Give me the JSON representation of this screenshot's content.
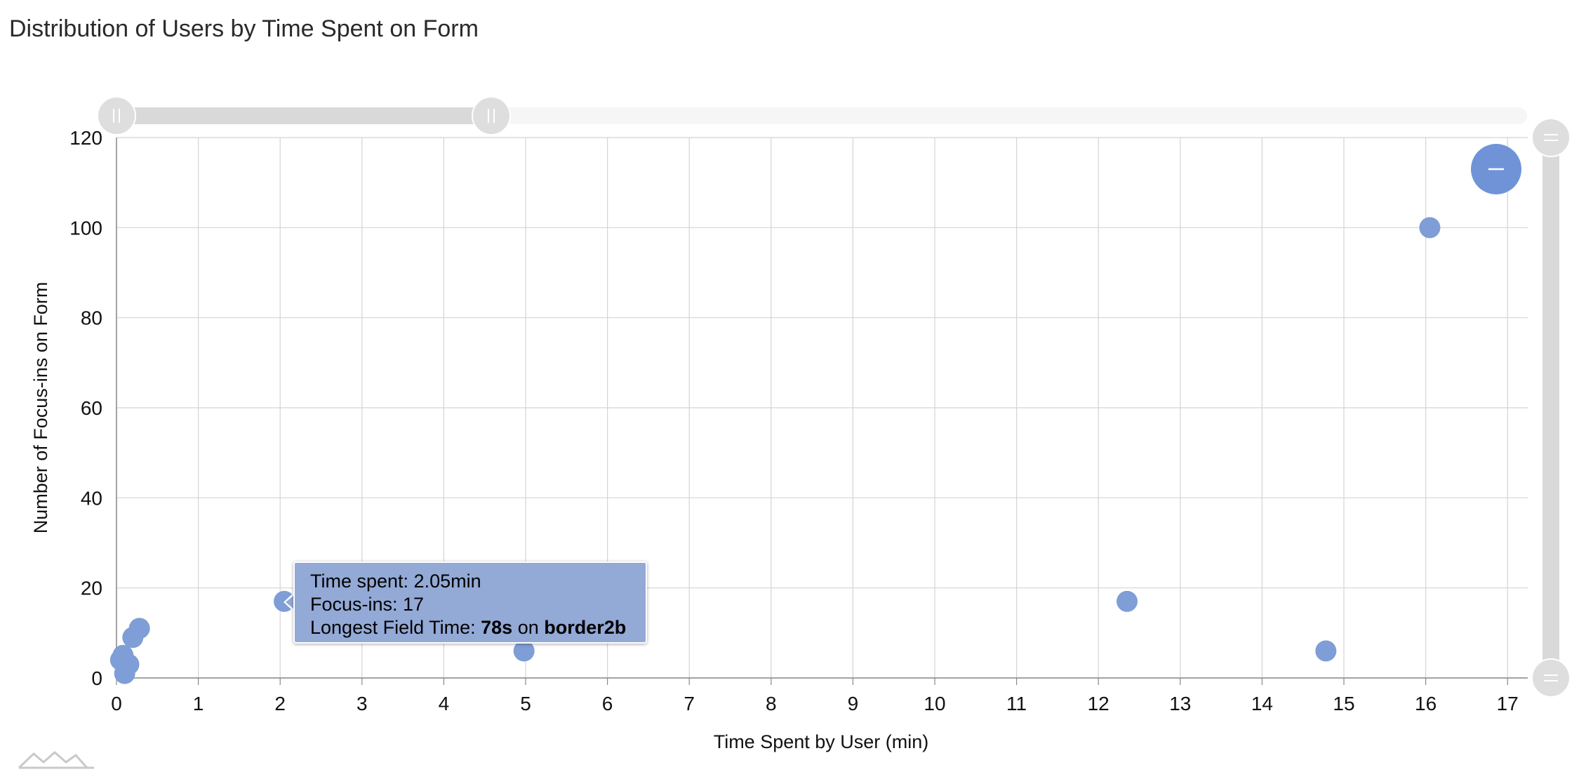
{
  "title": "Distribution of Users by Time Spent on Form",
  "chart_data": {
    "type": "scatter",
    "title": "Distribution of Users by Time Spent on Form",
    "xlabel": "Time Spent by User (min)",
    "ylabel": "Number of Focus-ins on Form",
    "xlim": [
      0,
      17.5
    ],
    "ylim": [
      0,
      120
    ],
    "x_ticks": [
      "0",
      "1",
      "2",
      "3",
      "4",
      "5",
      "6",
      "7",
      "8",
      "9",
      "10",
      "11",
      "12",
      "13",
      "14",
      "15",
      "16",
      "17"
    ],
    "y_ticks": [
      "0",
      "20",
      "40",
      "60",
      "80",
      "100",
      "120"
    ],
    "grid": true,
    "points": [
      {
        "x": 0.05,
        "y": 4
      },
      {
        "x": 0.08,
        "y": 5
      },
      {
        "x": 0.1,
        "y": 1
      },
      {
        "x": 0.15,
        "y": 3
      },
      {
        "x": 0.2,
        "y": 9
      },
      {
        "x": 0.28,
        "y": 11
      },
      {
        "x": 2.05,
        "y": 17
      },
      {
        "x": 4.98,
        "y": 6
      },
      {
        "x": 12.35,
        "y": 17
      },
      {
        "x": 14.78,
        "y": 6
      },
      {
        "x": 16.05,
        "y": 100
      }
    ],
    "point_color": "#7f9dd6",
    "x_scrollbar_range": [
      0,
      4.6
    ],
    "y_scrollbar_range": [
      0,
      120
    ]
  },
  "tooltip": {
    "line1": "Time spent: 2.05min",
    "line2": "Focus-ins: 17",
    "line3_prefix": "Longest Field Time: ",
    "line3_value": "78s",
    "line3_mid": " on ",
    "line3_field": "border2b"
  },
  "controls": {
    "zoom_out_icon": "minus-icon",
    "scroll_grip_icon": "grip-icon",
    "logo_icon": "chart-logo-icon"
  }
}
